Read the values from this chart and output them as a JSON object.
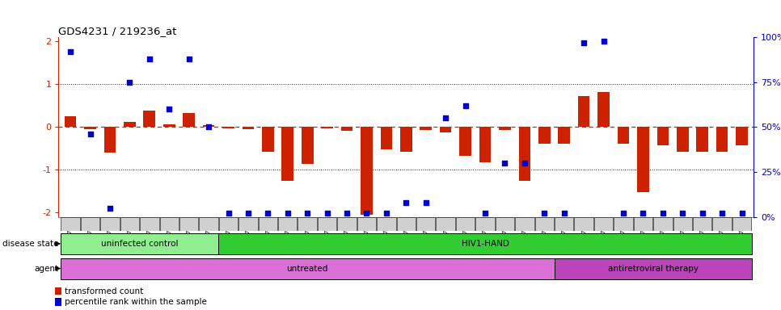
{
  "title": "GDS4231 / 219236_at",
  "samples": [
    "GSM697483",
    "GSM697484",
    "GSM697485",
    "GSM697486",
    "GSM697487",
    "GSM697488",
    "GSM697489",
    "GSM697490",
    "GSM697491",
    "GSM697492",
    "GSM697493",
    "GSM697494",
    "GSM697495",
    "GSM697496",
    "GSM697497",
    "GSM697498",
    "GSM697499",
    "GSM697500",
    "GSM697501",
    "GSM697502",
    "GSM697503",
    "GSM697504",
    "GSM697505",
    "GSM697506",
    "GSM697507",
    "GSM697508",
    "GSM697509",
    "GSM697510",
    "GSM697511",
    "GSM697512",
    "GSM697513",
    "GSM697514",
    "GSM697515",
    "GSM697516",
    "GSM697517"
  ],
  "red_values": [
    0.25,
    -0.05,
    -0.6,
    0.12,
    0.38,
    0.07,
    0.32,
    0.05,
    -0.03,
    -0.05,
    -0.58,
    -1.25,
    -0.85,
    -0.03,
    -0.08,
    -2.05,
    -0.52,
    -0.58,
    -0.07,
    -0.12,
    -0.68,
    -0.82,
    -0.06,
    -1.25,
    -0.38,
    -0.38,
    0.72,
    0.82,
    -0.38,
    -1.52,
    -0.42,
    -0.58,
    -0.58,
    -0.58,
    -0.42
  ],
  "blue_values": [
    92,
    46,
    5,
    75,
    88,
    60,
    88,
    50,
    2,
    2,
    2,
    2,
    2,
    2,
    2,
    2,
    2,
    8,
    8,
    55,
    62,
    2,
    30,
    30,
    2,
    2,
    97,
    98,
    2,
    2,
    2,
    2,
    2,
    2,
    2
  ],
  "ylim_left": [
    -2.1,
    2.1
  ],
  "ylim_right": [
    -2.1,
    2.1
  ],
  "yticks_left": [
    -2,
    -1,
    0,
    1,
    2
  ],
  "ytick_labels_left": [
    "-2",
    "-1",
    "0",
    "1",
    "2"
  ],
  "yticks_right_vals": [
    -2.1,
    -1.05,
    0.0,
    1.05,
    2.1
  ],
  "ytick_labels_right": [
    "0%",
    "25%",
    "50%",
    "75%",
    "100%"
  ],
  "disease_state_groups": [
    {
      "label": "uninfected control",
      "start": 0,
      "end": 8,
      "color": "#90EE90"
    },
    {
      "label": "HIV1-HAND",
      "start": 8,
      "end": 35,
      "color": "#32CD32"
    }
  ],
  "agent_groups": [
    {
      "label": "untreated",
      "start": 0,
      "end": 25,
      "color": "#DA70D6"
    },
    {
      "label": "antiretroviral therapy",
      "start": 25,
      "end": 35,
      "color": "#BB44BB"
    }
  ],
  "bar_color_red": "#CC2200",
  "dot_color_blue": "#0000CC",
  "zero_line_color": "#CC2200",
  "dotted_line_color": "#222222",
  "legend_items": [
    "transformed count",
    "percentile rank within the sample"
  ],
  "background_color": "#ffffff",
  "sample_box_color": "#d0d0d0"
}
